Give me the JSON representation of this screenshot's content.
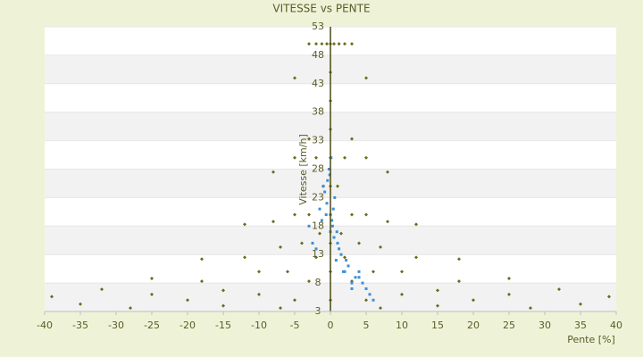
{
  "chart_data": {
    "type": "scatter",
    "title": "VITESSE vs PENTE",
    "x_label": "Pente [%]",
    "y_label": "Vitesse [km/h]",
    "xlim": [
      -40,
      40
    ],
    "ylim": [
      3,
      53
    ],
    "xticks": [
      -40,
      -35,
      -30,
      -25,
      -20,
      -15,
      -10,
      -5,
      0,
      5,
      10,
      15,
      20,
      25,
      30,
      35,
      40
    ],
    "yticks": [
      3,
      8,
      13,
      18,
      23,
      28,
      33,
      38,
      43,
      48,
      53
    ],
    "grid": true,
    "series": [
      {
        "color": "#6b6b1a",
        "x": [
          0.5,
          1,
          1.5,
          2,
          3,
          5,
          7,
          1.2,
          2,
          3,
          4,
          6,
          10,
          15,
          2,
          3,
          5,
          7,
          10,
          15,
          20,
          28,
          3,
          5,
          8,
          12,
          18,
          25,
          35,
          5,
          8,
          12,
          18,
          25,
          32,
          39,
          -0.5,
          -1,
          -1.5,
          -2,
          -3,
          -5,
          -7,
          -1.2,
          -2,
          -3,
          -4,
          -6,
          -10,
          -15,
          -2,
          -3,
          -5,
          -7,
          -10,
          -15,
          -20,
          -28,
          -3,
          -5,
          -8,
          -12,
          -18,
          -25,
          -35,
          -5,
          -8,
          -12,
          -18,
          -25,
          -32,
          -39,
          0,
          0,
          0,
          0,
          0,
          0,
          0,
          0,
          0,
          0
        ],
        "values": [
          50,
          25,
          16.7,
          12.5,
          8.3,
          5,
          3.6,
          50,
          30,
          20,
          15,
          10,
          6,
          4,
          50,
          33.3,
          20,
          14.3,
          10,
          6.7,
          5,
          3.6,
          50,
          30,
          18.8,
          12.5,
          8.3,
          6,
          4.3,
          44,
          27.5,
          18.3,
          12.2,
          8.8,
          6.9,
          5.6,
          50,
          25,
          16.7,
          12.5,
          8.3,
          5,
          3.6,
          50,
          30,
          20,
          15,
          10,
          6,
          4,
          50,
          33.3,
          20,
          14.3,
          10,
          6.7,
          5,
          3.6,
          50,
          30,
          18.8,
          12.5,
          8.3,
          6,
          4.3,
          44,
          27.5,
          18.3,
          12.2,
          8.8,
          6.9,
          5.6,
          5,
          10,
          15,
          20,
          25,
          30,
          35,
          40,
          45,
          50
        ]
      },
      {
        "color": "#3d8fd6",
        "x": [
          0,
          -0.5,
          0.3,
          1,
          -1,
          0.8,
          -0.2,
          0.5,
          2,
          3,
          4,
          5,
          -2,
          -3,
          1.5,
          0.2,
          -0.8,
          2.5,
          3.5,
          4.5,
          6,
          -1.5,
          0,
          0.6,
          -0.4,
          1.2,
          0.9,
          -0.6,
          2.2,
          5.5,
          -2.5,
          0.1,
          -0.1,
          1.8,
          3,
          4,
          0.4,
          -1.2
        ],
        "values": [
          20,
          22,
          18,
          15,
          25,
          12,
          28,
          16,
          10,
          8,
          9,
          7,
          14,
          18,
          13,
          19,
          24,
          11,
          9,
          8,
          5,
          21,
          17,
          23,
          26,
          14,
          17,
          20,
          12,
          6,
          15,
          30,
          27,
          10,
          7,
          10,
          21,
          19
        ]
      }
    ]
  }
}
